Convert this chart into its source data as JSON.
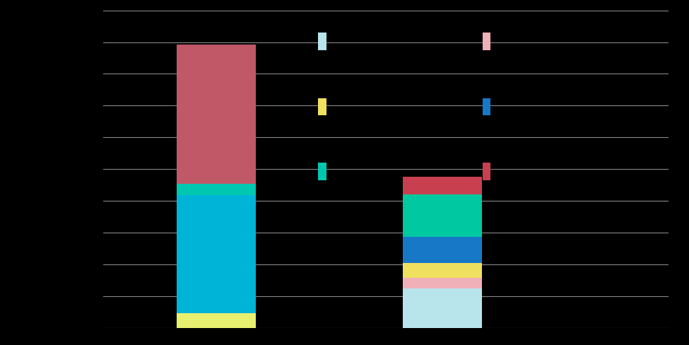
{
  "bars": [
    {
      "x": 1,
      "segments": [
        {
          "value": 48,
          "color": "#e8f070"
        },
        {
          "value": 390,
          "color": "#00b4d8"
        },
        {
          "value": 38,
          "color": "#00c8b0"
        },
        {
          "value": 460,
          "color": "#c05868"
        }
      ]
    },
    {
      "x": 3,
      "segments": [
        {
          "value": 130,
          "color": "#b8e4ec"
        },
        {
          "value": 35,
          "color": "#f0b0b8"
        },
        {
          "value": 50,
          "color": "#f0e060"
        },
        {
          "value": 85,
          "color": "#1878c8"
        },
        {
          "value": 140,
          "color": "#00c8a0"
        },
        {
          "value": 60,
          "color": "#c84050"
        }
      ]
    }
  ],
  "ylim": [
    0,
    1050
  ],
  "ytick_count": 11,
  "bar_width": 0.7,
  "xlim": [
    0,
    5
  ],
  "background_color": "#000000",
  "grid_color": "#888888",
  "legend_squares": [
    {
      "color": "#b8e4ec",
      "fx": 0.462,
      "fy": 0.855,
      "fw": 0.012,
      "fh": 0.05
    },
    {
      "color": "#f0b0b8",
      "fx": 0.7,
      "fy": 0.855,
      "fw": 0.012,
      "fh": 0.05
    },
    {
      "color": "#f0e060",
      "fx": 0.462,
      "fy": 0.665,
      "fw": 0.012,
      "fh": 0.05
    },
    {
      "color": "#1878c8",
      "fx": 0.7,
      "fy": 0.665,
      "fw": 0.012,
      "fh": 0.05
    },
    {
      "color": "#00c8b0",
      "fx": 0.462,
      "fy": 0.478,
      "fw": 0.012,
      "fh": 0.05
    },
    {
      "color": "#c84050",
      "fx": 0.7,
      "fy": 0.478,
      "fw": 0.012,
      "fh": 0.05
    }
  ]
}
